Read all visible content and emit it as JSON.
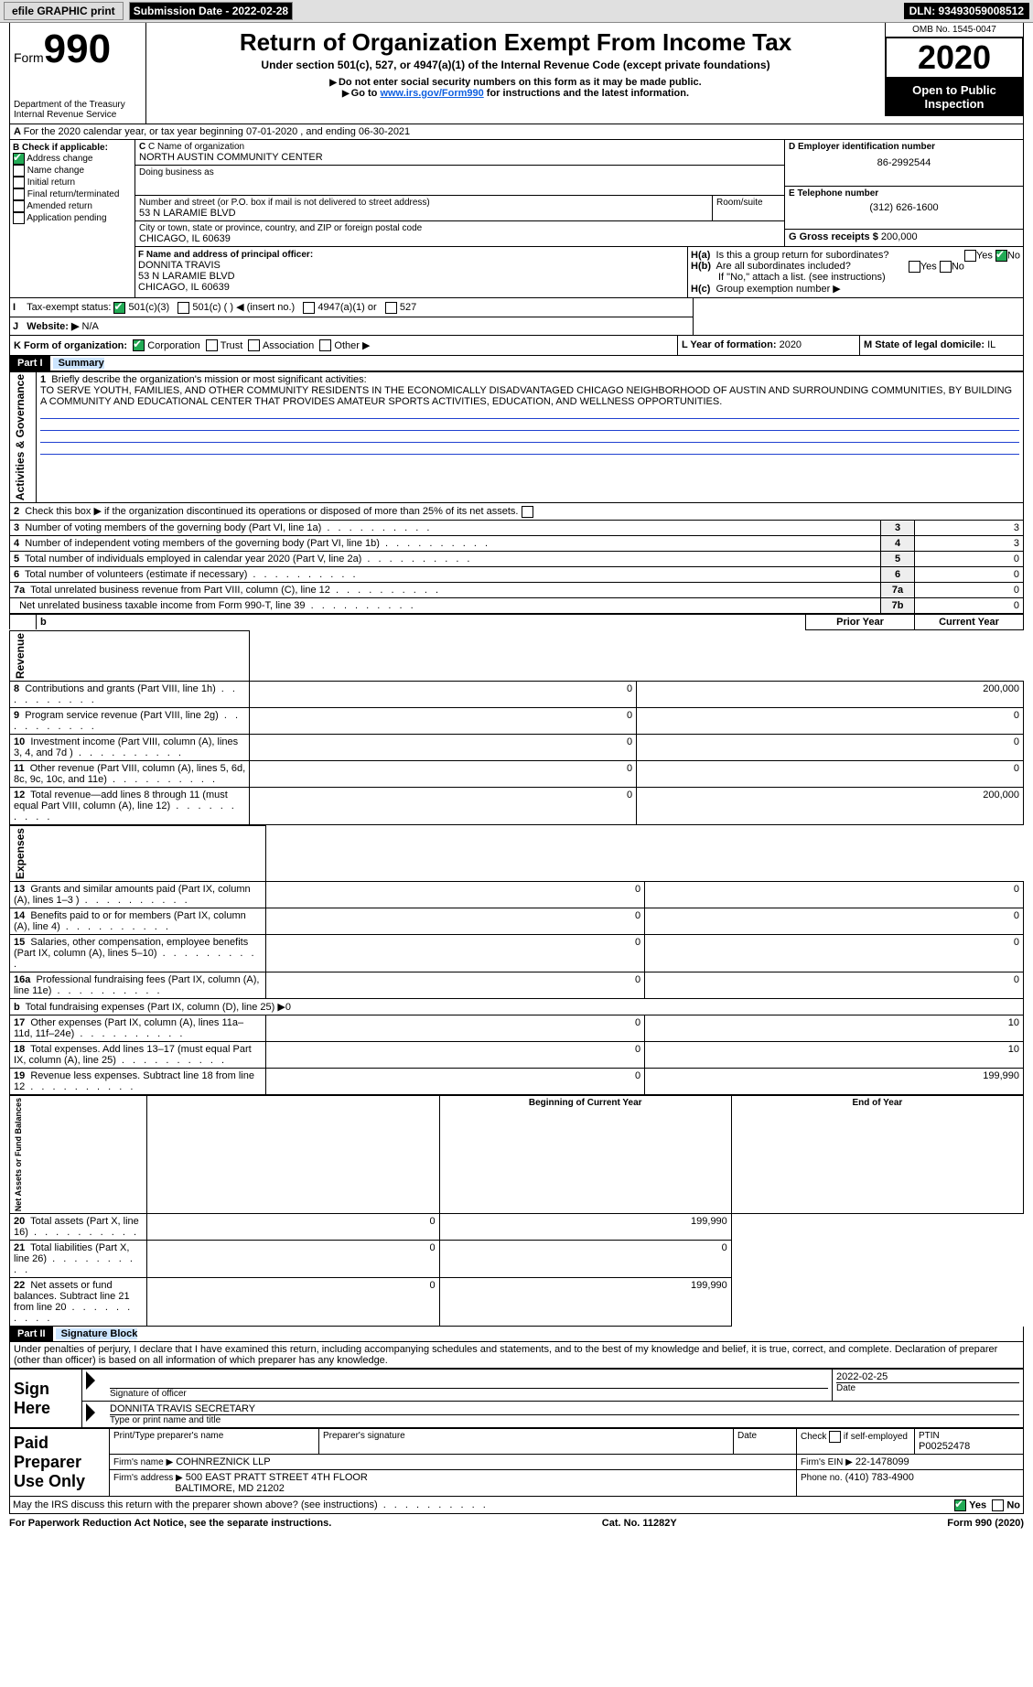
{
  "topbar": {
    "efile": "efile GRAPHIC print",
    "submission_label": "Submission Date - 2022-02-28",
    "dln": "DLN: 93493059008512"
  },
  "header": {
    "form_label": "Form",
    "form_no": "990",
    "title": "Return of Organization Exempt From Income Tax",
    "subtitle": "Under section 501(c), 527, or 4947(a)(1) of the Internal Revenue Code (except private foundations)",
    "note1": "Do not enter social security numbers on this form as it may be made public.",
    "note2_pre": "Go to ",
    "note2_link": "www.irs.gov/Form990",
    "note2_post": " for instructions and the latest information.",
    "dept": "Department of the Treasury\nInternal Revenue Service",
    "omb": "OMB No. 1545-0047",
    "year": "2020",
    "open": "Open to Public Inspection"
  },
  "A": {
    "text": "For the 2020 calendar year, or tax year beginning 07-01-2020     , and ending 06-30-2021"
  },
  "B": {
    "title": "B Check if applicable:",
    "items": [
      "Address change",
      "Name change",
      "Initial return",
      "Final return/terminated",
      "Amended return",
      "Application pending"
    ],
    "checked": [
      true,
      false,
      false,
      false,
      false,
      false
    ]
  },
  "C": {
    "name_lbl": "C Name of organization",
    "name": "NORTH AUSTIN COMMUNITY CENTER",
    "dba_lbl": "Doing business as",
    "dba": "",
    "addr_lbl": "Number and street (or P.O. box if mail is not delivered to street address)",
    "addr": "53 N LARAMIE BLVD",
    "room_lbl": "Room/suite",
    "city_lbl": "City or town, state or province, country, and ZIP or foreign postal code",
    "city": "CHICAGO, IL  60639"
  },
  "D": {
    "lbl": "D Employer identification number",
    "val": "86-2992544"
  },
  "E": {
    "lbl": "E Telephone number",
    "val": "(312) 626-1600"
  },
  "G": {
    "lbl": "G Gross receipts $",
    "val": "200,000"
  },
  "F": {
    "lbl": "F  Name and address of principal officer:",
    "name": "DONNITA TRAVIS",
    "addr1": "53 N LARAMIE BLVD",
    "addr2": "CHICAGO, IL  60639"
  },
  "H": {
    "a": "Is this a group return for subordinates?",
    "b": "Are all subordinates included?",
    "note": "If \"No,\" attach a list. (see instructions)",
    "c": "Group exemption number ▶",
    "ha_lbl": "H(a)",
    "hb_lbl": "H(b)",
    "hc_lbl": "H(c)",
    "yes": "Yes",
    "no": "No"
  },
  "I": {
    "lbl": "Tax-exempt status:",
    "opts": [
      "501(c)(3)",
      "501(c) (   ) ◀ (insert no.)",
      "4947(a)(1) or",
      "527"
    ]
  },
  "J": {
    "lbl": "Website: ▶",
    "val": "N/A"
  },
  "K": {
    "lbl": "K Form of organization:",
    "opts": [
      "Corporation",
      "Trust",
      "Association",
      "Other ▶"
    ]
  },
  "L": {
    "lbl": "L Year of formation:",
    "val": "2020"
  },
  "M": {
    "lbl": "M State of legal domicile:",
    "val": "IL"
  },
  "part1": {
    "lbl": "Part I",
    "title": "Summary"
  },
  "mission": {
    "q": "Briefly describe the organization's mission or most significant activities:",
    "text": "TO SERVE YOUTH, FAMILIES, AND OTHER COMMUNITY RESIDENTS IN THE ECONOMICALLY DISADVANTAGED CHICAGO NEIGHBORHOOD OF AUSTIN AND SURROUNDING COMMUNITIES, BY BUILDING A COMMUNITY AND EDUCATIONAL CENTER THAT PROVIDES AMATEUR SPORTS ACTIVITIES, EDUCATION, AND WELLNESS OPPORTUNITIES."
  },
  "gov_lines": [
    {
      "n": "2",
      "t": "Check this box ▶     if the organization discontinued its operations or disposed of more than 25% of its net assets."
    },
    {
      "n": "3",
      "t": "Number of voting members of the governing body (Part VI, line 1a)",
      "box": "3",
      "v": "3"
    },
    {
      "n": "4",
      "t": "Number of independent voting members of the governing body (Part VI, line 1b)",
      "box": "4",
      "v": "3"
    },
    {
      "n": "5",
      "t": "Total number of individuals employed in calendar year 2020 (Part V, line 2a)",
      "box": "5",
      "v": "0"
    },
    {
      "n": "6",
      "t": "Total number of volunteers (estimate if necessary)",
      "box": "6",
      "v": "0"
    },
    {
      "n": "7a",
      "t": "Total unrelated business revenue from Part VIII, column (C), line 12",
      "box": "7a",
      "v": "0"
    },
    {
      "n": "",
      "t": "Net unrelated business taxable income from Form 990-T, line 39",
      "box": "7b",
      "v": "0"
    }
  ],
  "col_hdrs": {
    "prior": "Prior Year",
    "current": "Current Year"
  },
  "rev_section": "Revenue",
  "exp_section": "Expenses",
  "net_section": "Net Assets or Fund Balances",
  "gov_section": "Activities & Governance",
  "rev_lines": [
    {
      "n": "8",
      "t": "Contributions and grants (Part VIII, line 1h)",
      "p": "0",
      "c": "200,000"
    },
    {
      "n": "9",
      "t": "Program service revenue (Part VIII, line 2g)",
      "p": "0",
      "c": "0"
    },
    {
      "n": "10",
      "t": "Investment income (Part VIII, column (A), lines 3, 4, and 7d )",
      "p": "0",
      "c": "0"
    },
    {
      "n": "11",
      "t": "Other revenue (Part VIII, column (A), lines 5, 6d, 8c, 9c, 10c, and 11e)",
      "p": "0",
      "c": "0"
    },
    {
      "n": "12",
      "t": "Total revenue—add lines 8 through 11 (must equal Part VIII, column (A), line 12)",
      "p": "0",
      "c": "200,000"
    }
  ],
  "exp_lines": [
    {
      "n": "13",
      "t": "Grants and similar amounts paid (Part IX, column (A), lines 1–3 )",
      "p": "0",
      "c": "0"
    },
    {
      "n": "14",
      "t": "Benefits paid to or for members (Part IX, column (A), line 4)",
      "p": "0",
      "c": "0"
    },
    {
      "n": "15",
      "t": "Salaries, other compensation, employee benefits (Part IX, column (A), lines 5–10)",
      "p": "0",
      "c": "0"
    },
    {
      "n": "16a",
      "t": "Professional fundraising fees (Part IX, column (A), line 11e)",
      "p": "0",
      "c": "0"
    },
    {
      "n": "b",
      "t": "Total fundraising expenses (Part IX, column (D), line 25) ▶0",
      "p": "",
      "c": ""
    },
    {
      "n": "17",
      "t": "Other expenses (Part IX, column (A), lines 11a–11d, 11f–24e)",
      "p": "0",
      "c": "10"
    },
    {
      "n": "18",
      "t": "Total expenses. Add lines 13–17 (must equal Part IX, column (A), line 25)",
      "p": "0",
      "c": "10"
    },
    {
      "n": "19",
      "t": "Revenue less expenses. Subtract line 18 from line 12",
      "p": "0",
      "c": "199,990"
    }
  ],
  "net_hdrs": {
    "begin": "Beginning of Current Year",
    "end": "End of Year"
  },
  "net_lines": [
    {
      "n": "20",
      "t": "Total assets (Part X, line 16)",
      "p": "0",
      "c": "199,990"
    },
    {
      "n": "21",
      "t": "Total liabilities (Part X, line 26)",
      "p": "0",
      "c": "0"
    },
    {
      "n": "22",
      "t": "Net assets or fund balances. Subtract line 21 from line 20",
      "p": "0",
      "c": "199,990"
    }
  ],
  "part2": {
    "lbl": "Part II",
    "title": "Signature Block"
  },
  "penalty": "Under penalties of perjury, I declare that I have examined this return, including accompanying schedules and statements, and to the best of my knowledge and belief, it is true, correct, and complete. Declaration of preparer (other than officer) is based on all information of which preparer has any knowledge.",
  "sign": {
    "here": "Sign Here",
    "sig_lbl": "Signature of officer",
    "date_lbl": "Date",
    "date": "2022-02-25",
    "name": "DONNITA TRAVIS  SECRETARY",
    "name_lbl": "Type or print name and title"
  },
  "paid": {
    "lbl": "Paid Preparer Use Only",
    "h1": "Print/Type preparer's name",
    "h2": "Preparer's signature",
    "h3": "Date",
    "h4": "Check       if self-employed",
    "h5": "PTIN",
    "ptin": "P00252478",
    "firm_lbl": "Firm's name    ▶",
    "firm": "COHNREZNICK LLP",
    "ein_lbl": "Firm's EIN ▶",
    "ein": "22-1478099",
    "addr_lbl": "Firm's address ▶",
    "addr1": "500 EAST PRATT STREET 4TH FLOOR",
    "addr2": "BALTIMORE, MD  21202",
    "phone_lbl": "Phone no.",
    "phone": "(410) 783-4900"
  },
  "discuss": "May the IRS discuss this return with the preparer shown above? (see instructions)",
  "footer": {
    "left": "For Paperwork Reduction Act Notice, see the separate instructions.",
    "mid": "Cat. No. 11282Y",
    "right": "Form 990 (2020)"
  }
}
